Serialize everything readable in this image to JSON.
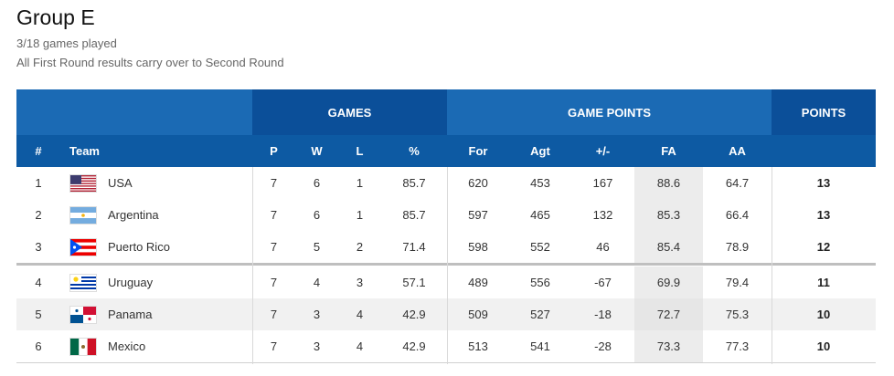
{
  "page": {
    "title": "Group E",
    "games_played": "3/18 games played",
    "note": "All First Round results carry over to Second Round"
  },
  "header": {
    "group_games": "GAMES",
    "group_game_points": "GAME POINTS",
    "group_points": "POINTS",
    "col_rank": "#",
    "col_team": "Team",
    "col_p": "P",
    "col_w": "W",
    "col_l": "L",
    "col_pct": "%",
    "col_for": "For",
    "col_agt": "Agt",
    "col_diff": "+/-",
    "col_fa": "FA",
    "col_aa": "AA"
  },
  "rows": [
    {
      "rank": "1",
      "team": "USA",
      "flag": "usa-flag",
      "p": "7",
      "w": "6",
      "l": "1",
      "pct": "85.7",
      "for": "620",
      "agt": "453",
      "diff": "167",
      "fa": "88.6",
      "aa": "64.7",
      "points": "13"
    },
    {
      "rank": "2",
      "team": "Argentina",
      "flag": "argentina-flag",
      "p": "7",
      "w": "6",
      "l": "1",
      "pct": "85.7",
      "for": "597",
      "agt": "465",
      "diff": "132",
      "fa": "85.3",
      "aa": "66.4",
      "points": "13"
    },
    {
      "rank": "3",
      "team": "Puerto Rico",
      "flag": "puerto-rico-flag",
      "p": "7",
      "w": "5",
      "l": "2",
      "pct": "71.4",
      "for": "598",
      "agt": "552",
      "diff": "46",
      "fa": "85.4",
      "aa": "78.9",
      "points": "12"
    },
    {
      "rank": "4",
      "team": "Uruguay",
      "flag": "uruguay-flag",
      "p": "7",
      "w": "4",
      "l": "3",
      "pct": "57.1",
      "for": "489",
      "agt": "556",
      "diff": "-67",
      "fa": "69.9",
      "aa": "79.4",
      "points": "11"
    },
    {
      "rank": "5",
      "team": "Panama",
      "flag": "panama-flag",
      "p": "7",
      "w": "3",
      "l": "4",
      "pct": "42.9",
      "for": "509",
      "agt": "527",
      "diff": "-18",
      "fa": "72.7",
      "aa": "75.3",
      "points": "10"
    },
    {
      "rank": "6",
      "team": "Mexico",
      "flag": "mexico-flag",
      "p": "7",
      "w": "3",
      "l": "4",
      "pct": "42.9",
      "for": "513",
      "agt": "541",
      "diff": "-28",
      "fa": "73.3",
      "aa": "77.3",
      "points": "10"
    }
  ],
  "colors": {
    "header_light": "#1b6ab4",
    "header_dark": "#0b4f99",
    "subheader": "#0d5aa3"
  }
}
